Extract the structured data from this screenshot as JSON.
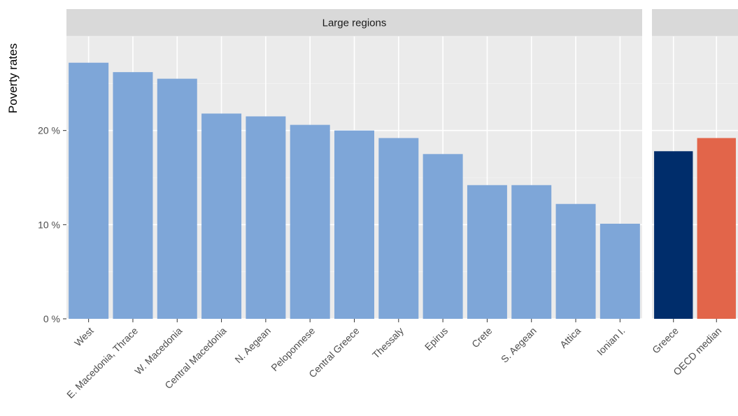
{
  "chart_data": {
    "type": "bar",
    "ylabel": "Poverty rates",
    "xlabel": "",
    "ylim": [
      0,
      30
    ],
    "yticks": [
      0,
      10,
      20
    ],
    "ytick_labels": [
      "0 %",
      "10 %",
      "20 %"
    ],
    "grid": true,
    "panels": [
      {
        "strip_label": "Large regions",
        "categories": [
          "West",
          "E. Macedonia, Thrace",
          "W. Macedonia",
          "Central Macedonia",
          "N. Aegean",
          "Peloponnese",
          "Central Greece",
          "Thessaly",
          "Epirus",
          "Crete",
          "S. Aegean",
          "Attica",
          "Ionian I."
        ],
        "values": [
          27.2,
          26.2,
          25.5,
          21.8,
          21.5,
          20.6,
          20.0,
          19.2,
          17.5,
          14.2,
          14.2,
          12.2,
          10.1
        ],
        "colors": [
          "#7ea6d8",
          "#7ea6d8",
          "#7ea6d8",
          "#7ea6d8",
          "#7ea6d8",
          "#7ea6d8",
          "#7ea6d8",
          "#7ea6d8",
          "#7ea6d8",
          "#7ea6d8",
          "#7ea6d8",
          "#7ea6d8",
          "#7ea6d8"
        ]
      },
      {
        "strip_label": "",
        "categories": [
          "Greece",
          "OECD median"
        ],
        "values": [
          17.8,
          19.2
        ],
        "colors": [
          "#002d6b",
          "#e2654a"
        ]
      }
    ]
  },
  "colors": {
    "panel_background": "#ebebeb",
    "grid_major": "#ffffff",
    "grid_minor": "#f5f5f5",
    "strip_background": "#d9d9d9",
    "tick_mark": "#333333"
  }
}
